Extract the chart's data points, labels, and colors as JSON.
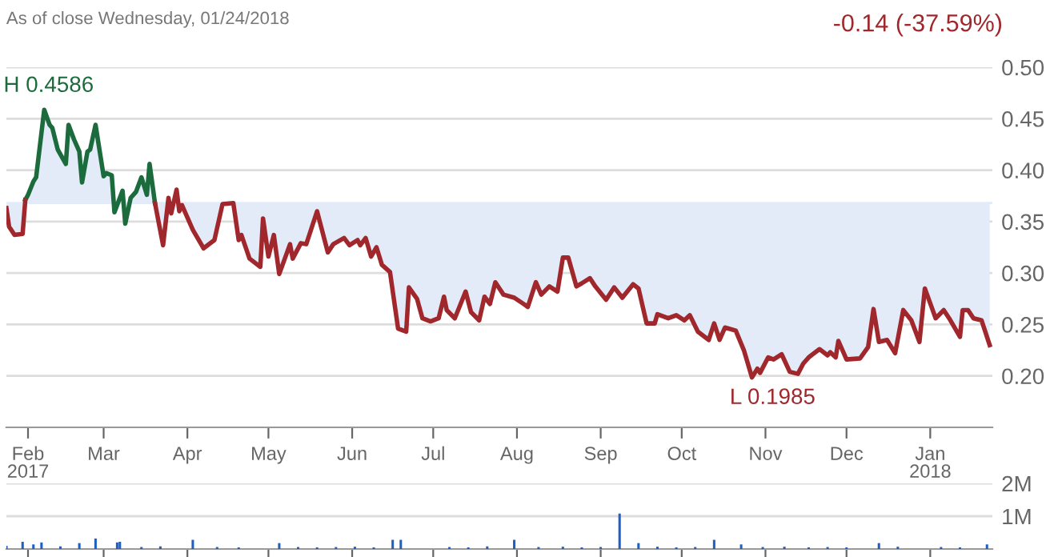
{
  "chart_data": [
    {
      "type": "line",
      "subtitle": "As of close Wednesday, 01/24/2018",
      "annotations": [
        "-0.14 (-37.59%)",
        {
          "text": "H 0.4586",
          "x": "2017-02-07",
          "y": 0.4586
        },
        {
          "text": "L 0.1985",
          "x": "2017-10-27",
          "y": 0.1985
        }
      ],
      "xlim": [
        "2017-01-24",
        "2018-01-24"
      ],
      "xticks": [
        {
          "value": "2017-02-01",
          "label": "Feb\n2017"
        },
        {
          "value": "2017-03-01",
          "label": "Mar"
        },
        {
          "value": "2017-04-01",
          "label": "Apr"
        },
        {
          "value": "2017-05-01",
          "label": "May"
        },
        {
          "value": "2017-06-01",
          "label": "Jun"
        },
        {
          "value": "2017-07-01",
          "label": "Jul"
        },
        {
          "value": "2017-08-01",
          "label": "Aug"
        },
        {
          "value": "2017-09-01",
          "label": "Sep"
        },
        {
          "value": "2017-10-01",
          "label": "Oct"
        },
        {
          "value": "2017-11-01",
          "label": "Nov"
        },
        {
          "value": "2017-12-01",
          "label": "Dec"
        },
        {
          "value": "2018-01-01",
          "label": "Jan\n2018"
        }
      ],
      "ylim": [
        0.15,
        0.5
      ],
      "yticks": [
        {
          "value": 0.2,
          "label": "0.20"
        },
        {
          "value": 0.25,
          "label": "0.25"
        },
        {
          "value": 0.3,
          "label": "0.30"
        },
        {
          "value": 0.35,
          "label": "0.35"
        },
        {
          "value": 0.4,
          "label": "0.40"
        },
        {
          "value": 0.45,
          "label": "0.45"
        },
        {
          "value": 0.5,
          "label": "0.50"
        }
      ],
      "grid": "y",
      "legend": false,
      "ref_lines": [
        {
          "axis": "y",
          "value": 0.368,
          "label": null,
          "color": "#e4ebf8"
        }
      ],
      "series": [
        {
          "color": "#1b6b3d",
          "x": [
            "2017-01-31",
            "2017-02-01",
            "2017-02-03",
            "2017-02-04",
            "2017-02-07",
            "2017-02-09",
            "2017-02-10",
            "2017-02-12",
            "2017-02-15",
            "2017-02-16",
            "2017-02-18",
            "2017-02-20",
            "2017-02-21",
            "2017-02-23",
            "2017-02-24",
            "2017-02-26",
            "2017-03-01",
            "2017-03-02",
            "2017-03-04",
            "2017-03-05",
            "2017-03-08",
            "2017-03-09",
            "2017-03-11",
            "2017-03-13",
            "2017-03-15",
            "2017-03-17",
            "2017-03-18",
            "2017-03-20"
          ],
          "values": [
            0.371,
            0.376,
            0.389,
            0.393,
            0.4586,
            0.444,
            0.441,
            0.42,
            0.406,
            0.444,
            0.43,
            0.418,
            0.388,
            0.418,
            0.42,
            0.444,
            0.394,
            0.397,
            0.395,
            0.359,
            0.38,
            0.348,
            0.373,
            0.379,
            0.393,
            0.376,
            0.406,
            0.368
          ]
        },
        {
          "color": "#a0282d",
          "x": [
            "2017-01-24",
            "2017-01-25",
            "2017-01-27",
            "2017-01-30",
            "2017-01-31",
            "2017-02-15",
            "2017-03-20",
            "2017-03-23",
            "2017-03-25",
            "2017-03-26",
            "2017-03-28",
            "2017-03-29",
            "2017-03-30",
            "2017-04-03",
            "2017-04-07",
            "2017-04-11",
            "2017-04-14",
            "2017-04-18",
            "2017-04-20",
            "2017-04-21",
            "2017-04-24",
            "2017-04-28",
            "2017-04-29",
            "2017-05-01",
            "2017-05-03",
            "2017-05-05",
            "2017-05-09",
            "2017-05-10",
            "2017-05-13",
            "2017-05-15",
            "2017-05-19",
            "2017-05-23",
            "2017-05-25",
            "2017-05-29",
            "2017-05-31",
            "2017-06-03",
            "2017-06-04",
            "2017-06-06",
            "2017-06-08",
            "2017-06-10",
            "2017-06-12",
            "2017-06-15",
            "2017-06-18",
            "2017-06-21",
            "2017-06-22",
            "2017-06-25",
            "2017-06-27",
            "2017-06-30",
            "2017-07-03",
            "2017-07-05",
            "2017-07-06",
            "2017-07-09",
            "2017-07-13",
            "2017-07-15",
            "2017-07-18",
            "2017-07-20",
            "2017-07-22",
            "2017-07-24",
            "2017-07-27",
            "2017-07-31",
            "2017-08-04",
            "2017-08-05",
            "2017-08-08",
            "2017-08-10",
            "2017-08-13",
            "2017-08-16",
            "2017-08-18",
            "2017-08-20",
            "2017-08-23",
            "2017-08-25",
            "2017-08-28",
            "2017-08-30",
            "2017-09-03",
            "2017-09-06",
            "2017-09-09",
            "2017-09-13",
            "2017-09-15",
            "2017-09-18",
            "2017-09-21",
            "2017-09-22",
            "2017-09-26",
            "2017-09-29",
            "2017-10-02",
            "2017-10-04",
            "2017-10-07",
            "2017-10-11",
            "2017-10-13",
            "2017-10-15",
            "2017-10-17",
            "2017-10-21",
            "2017-10-24",
            "2017-10-27",
            "2017-10-29",
            "2017-10-30",
            "2017-11-02",
            "2017-11-04",
            "2017-11-07",
            "2017-11-10",
            "2017-11-13",
            "2017-11-15",
            "2017-11-17",
            "2017-11-21",
            "2017-11-24",
            "2017-11-25",
            "2017-11-27",
            "2017-11-28",
            "2017-12-01",
            "2017-12-06",
            "2017-12-09",
            "2017-12-11",
            "2017-12-13",
            "2017-12-16",
            "2017-12-19",
            "2017-12-22",
            "2017-12-25",
            "2017-12-28",
            "2017-12-30",
            "2018-01-03",
            "2018-01-06",
            "2018-01-08",
            "2018-01-12",
            "2018-01-13",
            "2018-01-15",
            "2018-01-17",
            "2018-01-20",
            "2018-01-23"
          ],
          "values": [
            0.363,
            0.345,
            0.337,
            0.338,
            0.371,
            null,
            0.368,
            0.327,
            0.373,
            0.358,
            0.381,
            0.36,
            0.366,
            0.342,
            0.324,
            0.332,
            0.367,
            0.368,
            0.332,
            0.337,
            0.314,
            0.306,
            0.353,
            0.316,
            0.337,
            0.299,
            0.328,
            0.314,
            0.329,
            0.328,
            0.36,
            0.32,
            0.328,
            0.334,
            0.327,
            0.332,
            0.327,
            0.334,
            0.316,
            0.325,
            0.308,
            0.301,
            0.246,
            0.243,
            0.286,
            0.275,
            0.256,
            0.253,
            0.256,
            0.277,
            0.264,
            0.256,
            0.282,
            0.262,
            0.254,
            0.277,
            0.27,
            0.291,
            0.279,
            0.276,
            0.269,
            0.267,
            0.291,
            0.279,
            0.287,
            0.282,
            0.315,
            0.315,
            0.287,
            0.29,
            0.295,
            0.287,
            0.274,
            0.286,
            0.276,
            0.289,
            0.285,
            0.251,
            0.251,
            0.26,
            0.256,
            0.259,
            0.254,
            0.259,
            0.243,
            0.235,
            0.251,
            0.235,
            0.247,
            0.244,
            0.225,
            0.1985,
            0.207,
            0.203,
            0.218,
            0.216,
            0.221,
            0.204,
            0.202,
            0.212,
            0.218,
            0.226,
            0.22,
            0.223,
            0.218,
            0.234,
            0.216,
            0.217,
            0.228,
            0.265,
            0.233,
            0.235,
            0.222,
            0.264,
            0.254,
            0.233,
            0.285,
            0.256,
            0.264,
            0.256,
            0.238,
            0.264,
            0.264,
            0.256,
            0.254,
            0.23
          ]
        }
      ]
    },
    {
      "type": "bar",
      "tick_labels": "y",
      "grid": "y",
      "legend": false,
      "xlim": [
        "2017-01-24",
        "2018-01-24"
      ],
      "xticks": [
        {
          "value": "2017-02-01",
          "label": null
        },
        {
          "value": "2017-03-01",
          "label": null
        },
        {
          "value": "2017-04-01",
          "label": null
        },
        {
          "value": "2017-05-01",
          "label": null
        },
        {
          "value": "2017-06-01",
          "label": null
        },
        {
          "value": "2017-07-01",
          "label": null
        },
        {
          "value": "2017-08-01",
          "label": null
        },
        {
          "value": "2017-09-01",
          "label": null
        },
        {
          "value": "2017-10-01",
          "label": null
        },
        {
          "value": "2017-11-01",
          "label": null
        },
        {
          "value": "2017-12-01",
          "label": null
        },
        {
          "value": "2018-01-01",
          "label": null
        }
      ],
      "ylim": [
        0,
        2000000
      ],
      "yticks": [
        {
          "value": 1000000,
          "label": "1M"
        },
        {
          "value": 2000000,
          "label": "2M"
        }
      ],
      "x": [
        "2017-01-24",
        "2017-01-30",
        "2017-02-03",
        "2017-02-06",
        "2017-02-13",
        "2017-02-20",
        "2017-02-26",
        "2017-03-06",
        "2017-03-07",
        "2017-03-15",
        "2017-03-22",
        "2017-04-03",
        "2017-04-12",
        "2017-04-20",
        "2017-05-05",
        "2017-05-12",
        "2017-05-19",
        "2017-05-26",
        "2017-06-02",
        "2017-06-09",
        "2017-06-16",
        "2017-06-19",
        "2017-07-07",
        "2017-07-14",
        "2017-07-21",
        "2017-07-31",
        "2017-08-09",
        "2017-08-18",
        "2017-08-25",
        "2017-09-01",
        "2017-09-08",
        "2017-09-15",
        "2017-09-22",
        "2017-09-29",
        "2017-10-06",
        "2017-10-13",
        "2017-10-23",
        "2017-10-31",
        "2017-11-08",
        "2017-11-17",
        "2017-11-24",
        "2017-12-01",
        "2017-12-13",
        "2017-12-20",
        "2018-01-05",
        "2018-01-12",
        "2018-01-22"
      ],
      "series": [
        {
          "color": "#1f5fbf",
          "values": [
            100000,
            220000,
            140000,
            200000,
            80000,
            180000,
            320000,
            200000,
            220000,
            60000,
            80000,
            280000,
            60000,
            50000,
            180000,
            60000,
            50000,
            60000,
            70000,
            50000,
            280000,
            280000,
            60000,
            50000,
            80000,
            280000,
            60000,
            70000,
            50000,
            60000,
            1080000,
            180000,
            70000,
            50000,
            60000,
            280000,
            140000,
            60000,
            70000,
            50000,
            60000,
            50000,
            180000,
            70000,
            60000,
            50000,
            140000
          ]
        }
      ]
    }
  ]
}
